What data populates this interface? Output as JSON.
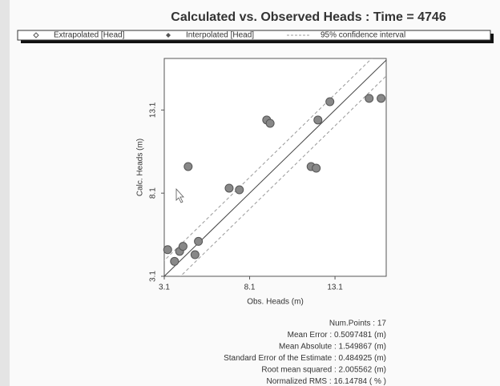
{
  "chart_data": {
    "type": "scatter",
    "title": "Calculated vs. Observed Heads : Time = 4746",
    "x_label": "Obs. Heads (m)",
    "y_label": "Calc. Heads (m)",
    "xlim": [
      3.1,
      16.1
    ],
    "ylim": [
      3.1,
      16.2
    ],
    "xticks": [
      3.1,
      8.1,
      13.1
    ],
    "yticks": [
      3.1,
      8.1,
      13.1
    ],
    "series": [
      {
        "name": "Extrapolated [Head]",
        "color": "#888888",
        "x": [],
        "values": []
      },
      {
        "name": "Interpolated [Head]",
        "color": "#888888",
        "x": [
          3.3,
          3.7,
          4.0,
          4.2,
          4.5,
          4.9,
          5.1,
          6.9,
          7.5,
          9.1,
          9.3,
          11.7,
          12.0,
          12.1,
          12.8,
          15.1,
          15.8
        ],
        "values": [
          4.7,
          4.0,
          4.6,
          4.9,
          9.7,
          4.4,
          5.2,
          8.4,
          8.3,
          12.5,
          12.3,
          9.7,
          9.6,
          12.5,
          13.6,
          13.8,
          13.8
        ]
      }
    ],
    "confidence_label": "95% confidence interval",
    "stats": [
      "Num.Points : 17",
      "Mean Error : 0.5097481 (m)",
      "Mean Absolute : 1.549867 (m)",
      "Standard Error of the Estimate : 0.484925 (m)",
      "Root mean squared : 2.005562 (m)",
      "Normalized RMS : 16.14784 ( % )"
    ]
  }
}
